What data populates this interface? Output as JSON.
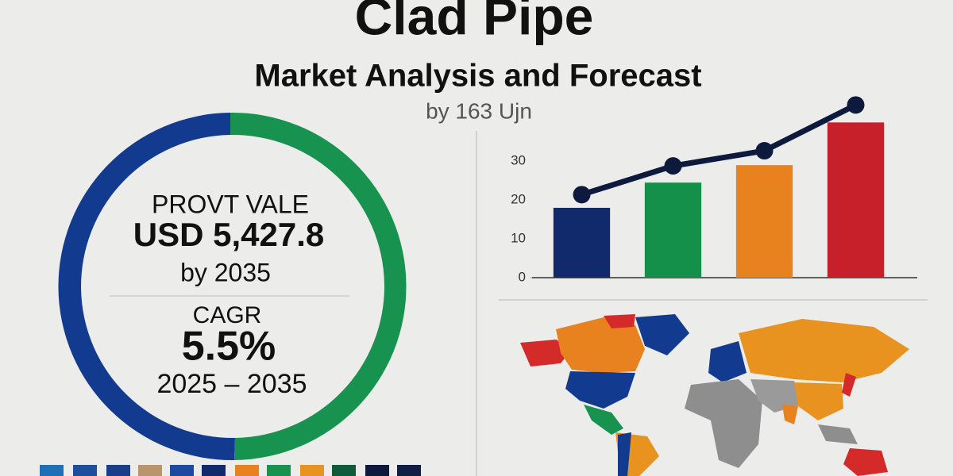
{
  "header": {
    "title": "Clad Pipe",
    "subtitle": "Market Analysis and Forecast",
    "byline": "by 163 Ujn"
  },
  "donut": {
    "value_label": "PROVT VALE",
    "value": "USD 5,427.8",
    "value_year": "by 2035",
    "cagr_label": "CAGR",
    "cagr": "5.5%",
    "period": "2025 – 2035"
  },
  "chart_data": {
    "type": "bar",
    "categories": [
      null,
      null,
      null,
      null
    ],
    "values": [
      18,
      24.5,
      29,
      40
    ],
    "colors": [
      "#102a6b",
      "#14904a",
      "#e8821f",
      "#c8202a"
    ],
    "line_values": [
      21.4,
      28.8,
      32.7,
      44.5
    ],
    "line_color": "#0d1a3d",
    "ylim": [
      0,
      46
    ],
    "yticks": [
      0,
      10,
      20,
      30
    ]
  }
}
